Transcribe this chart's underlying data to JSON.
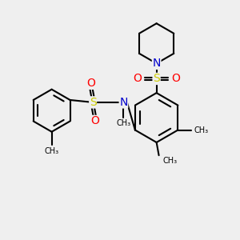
{
  "bg_color": "#efefef",
  "atom_colors": {
    "C": "#000000",
    "N": "#0000cc",
    "O": "#ff0000",
    "S": "#cccc00"
  },
  "bond_color": "#000000",
  "bond_lw": 1.5,
  "figsize": [
    3.0,
    3.0
  ],
  "dpi": 100,
  "xlim": [
    0,
    10
  ],
  "ylim": [
    0,
    10
  ]
}
